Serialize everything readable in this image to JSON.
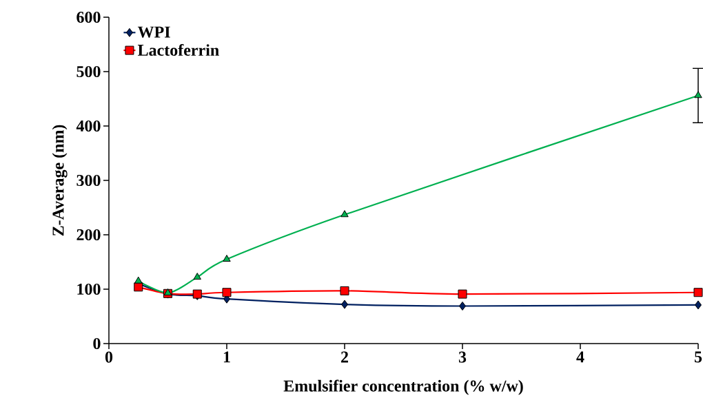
{
  "chart_data": {
    "type": "line",
    "xlabel": "Emulsifier concentration (% w/w)",
    "ylabel": "Z-Average (nm)",
    "xlim": [
      0,
      5
    ],
    "xticks": [
      0,
      1,
      2,
      3,
      4,
      5
    ],
    "ylim": [
      0,
      600
    ],
    "yticks": [
      0,
      100,
      200,
      300,
      400,
      500,
      600
    ],
    "grid": false,
    "legend": "top left",
    "line_style": "solid",
    "series": [
      {
        "name": "WPI",
        "color": "#002060",
        "marker": "diamond",
        "x": [
          0.25,
          0.5,
          0.75,
          1,
          2,
          3,
          5
        ],
        "values": [
          110,
          91,
          88,
          82,
          72,
          69,
          71
        ]
      },
      {
        "name": "Lactoferrin",
        "color": "#ff0000",
        "marker": "square",
        "x": [
          0.25,
          0.5,
          0.75,
          1,
          2,
          3,
          5
        ],
        "values": [
          104,
          92,
          91,
          94,
          97,
          91,
          94
        ]
      },
      {
        "color": "#00b050",
        "marker": "triangle",
        "x": [
          0.25,
          0.5,
          0.75,
          1,
          2,
          5
        ],
        "values": [
          115,
          93,
          122,
          155,
          237,
          456
        ],
        "errors": [
          null,
          null,
          null,
          null,
          null,
          50
        ]
      }
    ]
  }
}
